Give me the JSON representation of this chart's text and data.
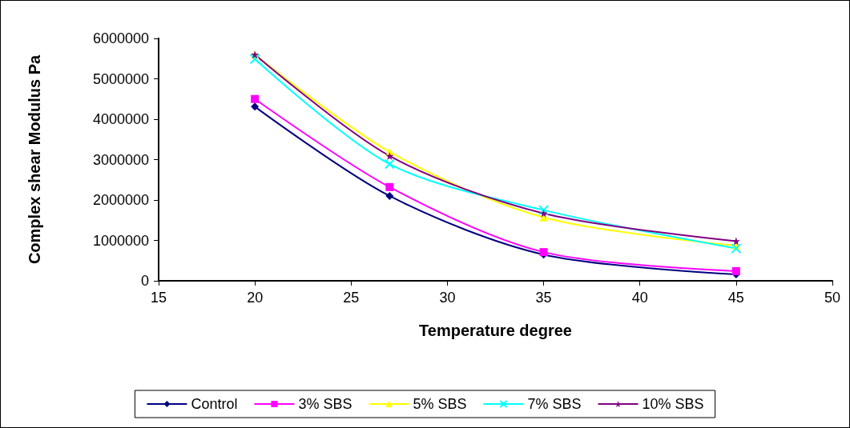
{
  "chart_data": {
    "type": "line",
    "xlabel": "Temperature degree",
    "ylabel": "Complex shear Modulus Pa",
    "x": [
      20,
      27,
      35,
      45
    ],
    "series": [
      {
        "name": "Control",
        "color": "#000080",
        "marker": "diamond",
        "values": [
          4310000,
          2100000,
          650000,
          160000
        ]
      },
      {
        "name": "3% SBS",
        "color": "#ff00ff",
        "marker": "square",
        "values": [
          4500000,
          2320000,
          710000,
          240000
        ]
      },
      {
        "name": "5% SBS",
        "color": "#ffff00",
        "marker": "triangle",
        "values": [
          5600000,
          3190000,
          1570000,
          870000
        ]
      },
      {
        "name": "7% SBS",
        "color": "#00ffff",
        "marker": "cross",
        "values": [
          5490000,
          2890000,
          1750000,
          800000
        ]
      },
      {
        "name": "10% SBS",
        "color": "#800080",
        "marker": "star",
        "values": [
          5600000,
          3090000,
          1670000,
          980000
        ]
      }
    ],
    "xlim": [
      15,
      50
    ],
    "xticks": [
      15,
      20,
      25,
      30,
      35,
      40,
      45,
      50
    ],
    "ylim": [
      0,
      6000000
    ],
    "yticks": [
      0,
      1000000,
      2000000,
      3000000,
      4000000,
      5000000,
      6000000
    ],
    "grid": false,
    "legend": "bottom",
    "line_style": "solid"
  }
}
